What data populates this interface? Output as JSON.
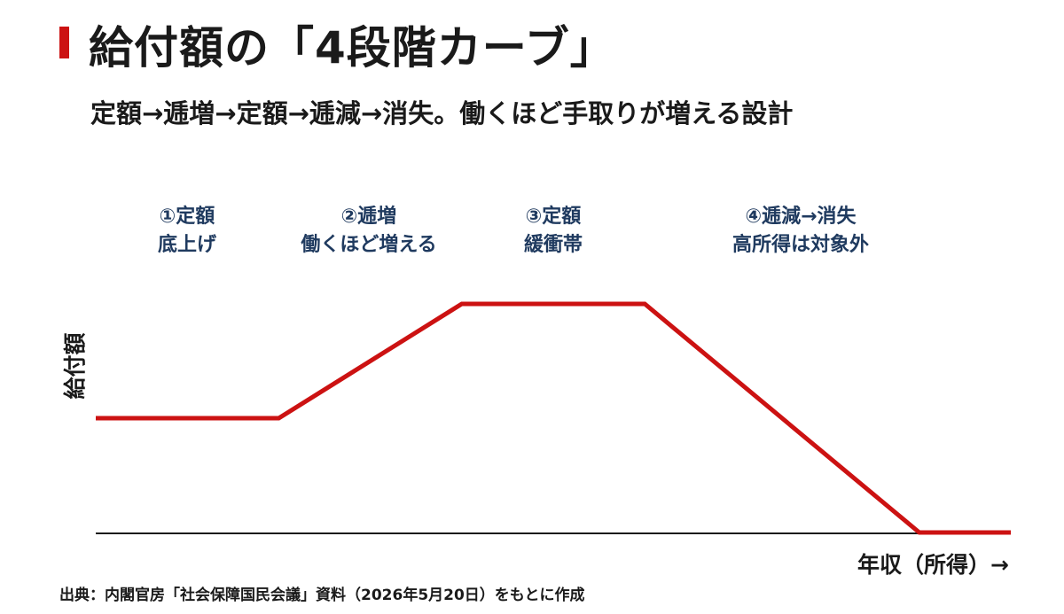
{
  "title": "給付額の「4段階カーブ」",
  "subtitle": "定額→逓増→定額→逓減→消失。働くほど手取りが増える設計",
  "phases": [
    {
      "line1": "①定額",
      "line2": "底上げ"
    },
    {
      "line1": "②逓増",
      "line2": "働くほど増える"
    },
    {
      "line1": "③定額",
      "line2": "緩衝帯"
    },
    {
      "line1": "④逓減→消失",
      "line2": "高所得は対象外"
    }
  ],
  "source": "出典：内閣官房「社会保障国民会議」資料（2026年5月20日）をもとに作成",
  "colors": {
    "line": "#cc1212",
    "axis": "#1a1a1a",
    "phase_text": "#1f3a5f",
    "accent": "#cc1212"
  },
  "chart_data": {
    "type": "line",
    "title": "給付額の「4段階カーブ」",
    "xlabel": "年収（所得）→",
    "ylabel": "給付額",
    "x_scale": "schematic (no ticks)",
    "y_scale": "schematic (no ticks)",
    "grid": false,
    "legend": "none",
    "series": [
      {
        "values": [
          {
            "x": 0,
            "y": 0.5
          },
          {
            "x": 0.2,
            "y": 0.5
          },
          {
            "x": 0.4,
            "y": 1.0
          },
          {
            "x": 0.6,
            "y": 1.0
          },
          {
            "x": 0.9,
            "y": 0.0
          },
          {
            "x": 1.0,
            "y": 0.0
          }
        ]
      }
    ],
    "xlim": [
      0,
      1
    ],
    "ylim": [
      0,
      1
    ]
  }
}
